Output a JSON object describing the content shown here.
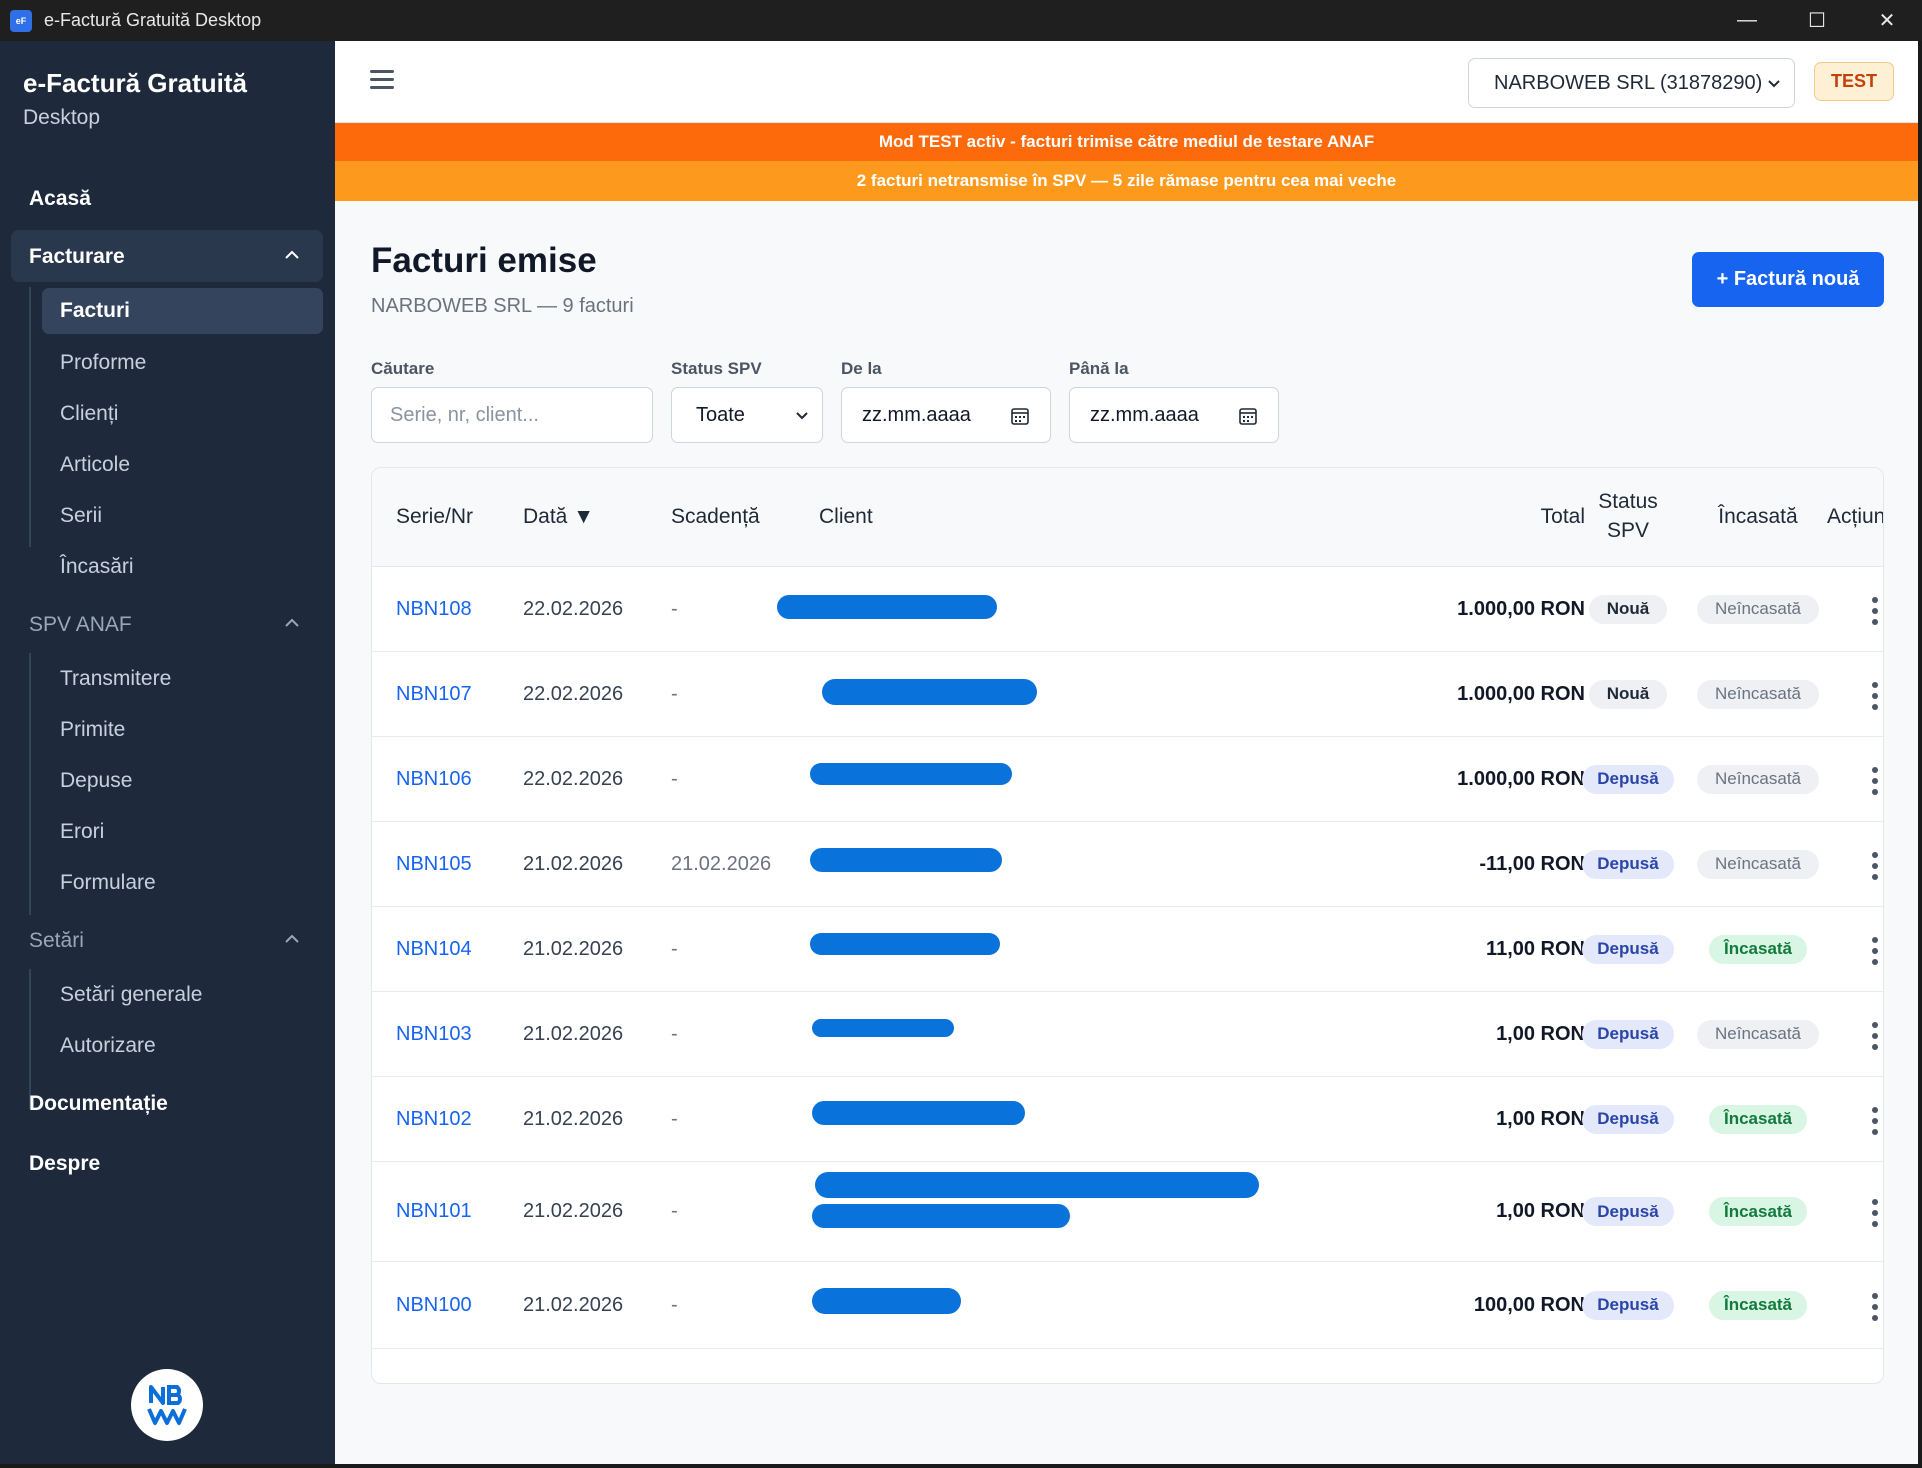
{
  "window": {
    "title": "e-Factură Gratuită Desktop",
    "icon_text": "eF",
    "minimize": "—",
    "maximize": "☐",
    "close": "✕"
  },
  "sidebar": {
    "brand_title": "e-Factură Gratuită",
    "brand_sub": "Desktop",
    "home": "Acasă",
    "groups": [
      {
        "label": "Facturare",
        "items": [
          "Facturi",
          "Proforme",
          "Clienți",
          "Articole",
          "Serii",
          "Încasări"
        ]
      },
      {
        "label": "SPV ANAF",
        "items": [
          "Transmitere",
          "Primite",
          "Depuse",
          "Erori",
          "Formulare"
        ]
      },
      {
        "label": "Setări",
        "items": [
          "Setări generale",
          "Autorizare"
        ]
      }
    ],
    "docs": "Documentație",
    "about": "Despre",
    "logo_text": "NB"
  },
  "topbar": {
    "company": "NARBOWEB SRL (31878290)",
    "mode_badge": "TEST"
  },
  "banners": {
    "test_mode": "Mod TEST activ - facturi trimise către mediul de testare ANAF",
    "pending": "2 facturi netransmise în SPV — 5 zile rămase pentru cea mai veche"
  },
  "page": {
    "title": "Facturi emise",
    "subtitle": "NARBOWEB SRL — 9 facturi",
    "new_button": "+ Factură nouă"
  },
  "filters": {
    "search_label": "Căutare",
    "search_placeholder": "Serie, nr, client...",
    "status_label": "Status SPV",
    "status_value": "Toate",
    "from_label": "De la",
    "from_placeholder": "zz.mm.aaaa",
    "to_label": "Până la",
    "to_placeholder": "zz.mm.aaaa"
  },
  "table": {
    "headers": {
      "serie": "Serie/Nr",
      "data": "Dată",
      "sort_indicator": "▼",
      "scadenta": "Scadență",
      "client": "Client",
      "total": "Total",
      "status_1": "Status",
      "status_2": "SPV",
      "incasata": "Încasată",
      "actiuni": "Acțiuni"
    },
    "rows": [
      {
        "nr": "NBN108",
        "data": "22.02.2026",
        "scadenta": "-",
        "total": "1.000,00 RON",
        "status": "Nouă",
        "incasare": "Neîncasată"
      },
      {
        "nr": "NBN107",
        "data": "22.02.2026",
        "scadenta": "-",
        "total": "1.000,00 RON",
        "status": "Nouă",
        "incasare": "Neîncasată"
      },
      {
        "nr": "NBN106",
        "data": "22.02.2026",
        "scadenta": "-",
        "total": "1.000,00 RON",
        "status": "Depusă",
        "incasare": "Neîncasată"
      },
      {
        "nr": "NBN105",
        "data": "21.02.2026",
        "scadenta": "21.02.2026",
        "total": "-11,00 RON",
        "status": "Depusă",
        "incasare": "Neîncasată"
      },
      {
        "nr": "NBN104",
        "data": "21.02.2026",
        "scadenta": "-",
        "total": "11,00 RON",
        "status": "Depusă",
        "incasare": "Încasată"
      },
      {
        "nr": "NBN103",
        "data": "21.02.2026",
        "scadenta": "-",
        "total": "1,00 RON",
        "status": "Depusă",
        "incasare": "Neîncasată"
      },
      {
        "nr": "NBN102",
        "data": "21.02.2026",
        "scadenta": "-",
        "total": "1,00 RON",
        "status": "Depusă",
        "incasare": "Încasată"
      },
      {
        "nr": "NBN101",
        "data": "21.02.2026",
        "scadenta": "-",
        "total": "1,00 RON",
        "status": "Depusă",
        "incasare": "Încasată"
      },
      {
        "nr": "NBN100",
        "data": "21.02.2026",
        "scadenta": "-",
        "total": "100,00 RON",
        "status": "Depusă",
        "incasare": "Încasată"
      }
    ]
  },
  "colors": {
    "sidebar_bg": "#1e2a3c",
    "accent": "#1764f0",
    "banner_test": "#fd6a0c",
    "banner_pending": "#fd9a1d",
    "redaction": "#0a72db"
  }
}
